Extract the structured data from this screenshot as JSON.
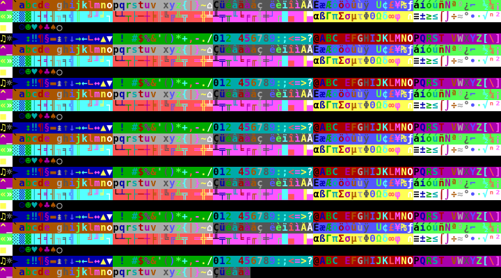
{
  "palette": [
    "#000000",
    "#0000aa",
    "#00aa00",
    "#00aaaa",
    "#aa0000",
    "#aa00aa",
    "#aa5500",
    "#aaaaaa",
    "#555555",
    "#5555ff",
    "#55ff55",
    "#55ffff",
    "#ff5555",
    "#ff55ff",
    "#ffff55",
    "#ffffff"
  ],
  "screen": {
    "rows": [
      "^_`abcdefghijklmnopqrstuvwxyz{|}~⌂ÇüéâäàåçêëèïîìÄÅÉæÆôöòûùÿÖÜ¢£¥₧ƒáíóúñÑªº¿⌐¬½¼¡",
      "«»░▒▓│┤╡╢╖╕╣║╗╝╜╛┐└┴┬├─┼╞╟╚╔╩╦╠═╬╧╨╤╥╙╘╒╓╫╪┘┌█▄▌▐▀αßΓπΣσµτΦΘΩδ∞φε∩≡±≥≤⌠⌡÷≈°∙·√ⁿ²",
      "■  ☺☻♥♦♣♠○",
      "♫☼►◄↕‼¶§▬↨↑↓→←∟↔▲▼ !\"#$%&'()*+,-./0123456789:;<=>?@ABCDEFGHIJKLMNOPQRSTUVWXYZ[\\]",
      "^_`abcdefghijklmnopqrstuvwxyz{|}~⌂ÇüéâäàåçêëèïîìÄÅÉæÆôöòûùÿÖÜ¢£¥₧ƒáíóúñÑªº¿⌐¬½¼¡",
      "«»░▒▓│┤╡╢╖╕╣║╗╝╜╛┐└┴┬├─┼╞╟╚╔╩╦╠═╬╧╨╤╥╙╘╒╓╫╪┘┌█▄▌▐▀αßΓπΣσµτΦΘΩδ∞φε∩≡±≥≤⌠⌡÷≈°∙·√ⁿ²",
      "■  ☺☻♥♦♣♠○",
      "♫☼►◄↕‼¶§▬↨↑↓→←∟↔▲▼ !\"#$%&'()*+,-./0123456789:;<=>?@ABCDEFGHIJKLMNOPQRSTUVWXYZ[\\]",
      "^_`abcdefghijklmnopqrstuvwxyz{|}~⌂ÇüéâäàåçêëèïîìÄÅÉæÆôöòûùÿÖÜ¢£¥₧ƒáíóúñÑªº¿⌐¬½¼¡",
      "«»░▒▓│┤╡╢╖╕╣║╗╝╜╛┐└┴┬├─┼╞╟╚╔╩╦╠═╬╧╨╤╥╙╘╒╓╫╪┘┌█▄▌▐▀αßΓπΣσµτΦΘΩδ∞φε∩≡±≥≤⌠⌡÷≈°∙·√ⁿ²",
      "■  ☺☻♥♦♣♠○",
      "♫☼►◄↕‼¶§▬↨↑↓→←∟↔▲▼ !\"#$%&'()*+,-./0123456789:;<=>?@ABCDEFGHIJKLMNOPQRSTUVWXYZ[\\]",
      "^_`abcdefghijklmnopqrstuvwxyz{|}~⌂ÇüéâäàåçêëèïîìÄÅÉæÆôöòûùÿÖÜ¢£¥₧ƒáíóúñÑªº¿⌐¬½¼¡",
      "«»░▒▓│┤╡╢╖╕╣║╗╝╜╛┐└┴┬├─┼╞╟╚╔╩╦╠═╬╧╨╤╥╙╘╒╓╫╪┘┌█▄▌▐▀αßΓπΣσµτΦΘΩδ∞φε∩≡±≥≤⌠⌡÷≈°∙·√ⁿ²",
      "■  ☺☻♥♦♣♠○",
      "♫☼►◄↕‼¶§▬↨↑↓→←∟↔▲▼ !\"#$%&'()*+,-./0123456789:;<=>?@ABCDEFGHIJKLMNOPQRSTUVWXYZ[\\]",
      "^_`abcdefghijklmnopqrstuvwxyz{|}~⌂ÇüéâäàåçêëèïîìÄÅÉæÆôöòûùÿÖÜ¢£¥₧ƒáíóúñÑªº¿⌐¬½¼¡",
      "«»░▒▓│┤╡╢╖╕╣║╗╝╜╛┐└┴┬├─┼╞╟╚╔╩╦╠═╬╧╨╤╥╙╘╒╓╫╪┘┌█▄▌▐▀αßΓπΣσµτΦΘΩδ∞φε∩≡±≥≤⌠⌡÷≈°∙·√ⁿ²",
      "■  ☺☻♥♦♣♠○",
      "♫☼►◄↕‼¶§▬↨↑↓→←∟↔▲▼ !\"#$%&'()*+,-./0123456789:;<=>?@ABCDEFGHIJKLMNOPQRSTUVWXYZ[\\]",
      "^_`abcdefghijklmnopqrstuvwxyz{|}~⌂ÇüéâäàåçêëèïîìÄÅÉæÆôöòûùÿÖÜ¢£¥₧ƒáíóúñÑªº¿⌐¬½¼¡",
      "«»░▒▓│┤╡╢╖╕╣║╗╝╜╛┐└┴┬├─┼╞╟╚╔╩╦╠═╬╧╨╤╥╙╘╒╓╫╪┘┌█▄▌▐▀αßΓπΣσµτΦΘΩδ∞φε∩≡±≥≤⌠⌡÷≈°∙·√ⁿ²",
      "■  ☺☻♥♦♣♠○",
      "♫☼►◄↕‼¶§▬↨↑↓→←∟↔▲▼ !\"#$%&'()*+,-./0123456789:;<=>?@ABCDEFGHIJKLMNOPQRSTUVWXYZ[\\]",
      "^_`abcdefghijklmnopqrstuvwxyz{|}~⌂Çüéâäà"
    ]
  }
}
